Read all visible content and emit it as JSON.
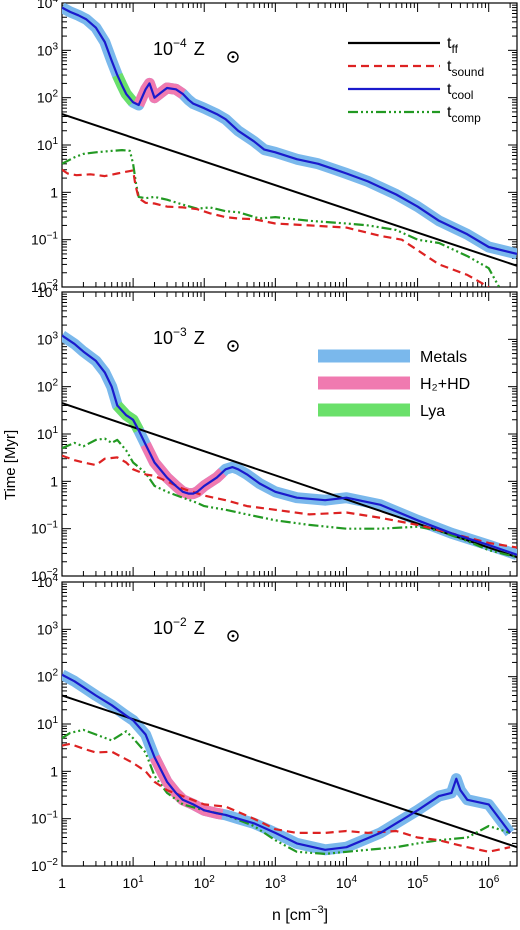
{
  "figure": {
    "ylabel": "Time [Myr]",
    "xlabel_base": "n [cm",
    "xlabel_exp": "−3",
    "xlabel_end": "]",
    "x_tick_labels": [
      {
        "base": "1",
        "exp": ""
      },
      {
        "base": "10",
        "exp": "1"
      },
      {
        "base": "10",
        "exp": "2"
      },
      {
        "base": "10",
        "exp": "3"
      },
      {
        "base": "10",
        "exp": "4"
      },
      {
        "base": "10",
        "exp": "5"
      },
      {
        "base": "10",
        "exp": "6"
      }
    ],
    "y_tick_labels": [
      {
        "base": "10",
        "exp": "−2"
      },
      {
        "base": "10",
        "exp": "−1"
      },
      {
        "base": "1",
        "exp": ""
      },
      {
        "base": "10",
        "exp": "1"
      },
      {
        "base": "10",
        "exp": "2"
      },
      {
        "base": "10",
        "exp": "3"
      },
      {
        "base": "10",
        "exp": "4"
      }
    ],
    "legend_lines": [
      {
        "base": "t",
        "sub": "ff",
        "color": "#000000",
        "dash": ""
      },
      {
        "base": "t",
        "sub": "sound",
        "color": "#dd2222",
        "dash": "8,5"
      },
      {
        "base": "t",
        "sub": "cool",
        "color": "#1a1acc",
        "dash": ""
      },
      {
        "base": "t",
        "sub": "comp",
        "color": "#229922",
        "dash": "10,3,2,3,2,3,2,3"
      }
    ],
    "legend_bands": [
      {
        "label": "Metals",
        "color": "#7ab8ec"
      },
      {
        "label": "H₂+HD",
        "color": "#f07ab0"
      },
      {
        "label": "Lya",
        "color": "#6ae06a"
      }
    ],
    "colors": {
      "metals": "#7ab8ec",
      "h2hd": "#f07ab0",
      "lya": "#6ae06a",
      "tcool": "#1a1acc",
      "tff": "#000000",
      "tsound": "#dd2222",
      "tcomp": "#229922"
    }
  },
  "chart_data": [
    {
      "type": "line",
      "panel_label_base": "10",
      "panel_label_exp": "−4",
      "panel_label_unit": "Z",
      "xscale": "log",
      "yscale": "log",
      "xlim": [
        1,
        2500000
      ],
      "ylim": [
        0.01,
        10000
      ],
      "legend": "top-right",
      "series": [
        {
          "key": "tff",
          "x": [
            1,
            2500000
          ],
          "y": [
            45,
            0.028
          ]
        },
        {
          "key": "tsound",
          "x": [
            1,
            1.2,
            1.6,
            2.5,
            4,
            6,
            10,
            10.8,
            12,
            15,
            20,
            30,
            50,
            80,
            120,
            200,
            300,
            500,
            1000,
            3000,
            10000,
            30000,
            60000,
            100000,
            200000,
            500000,
            1000000
          ],
          "y": [
            3.0,
            2.5,
            2.3,
            2.4,
            2.2,
            2.5,
            2.9,
            1.4,
            0.75,
            0.6,
            0.58,
            0.5,
            0.48,
            0.44,
            0.36,
            0.3,
            0.28,
            0.27,
            0.22,
            0.2,
            0.18,
            0.12,
            0.1,
            0.06,
            0.03,
            0.018,
            0.01
          ]
        },
        {
          "key": "tcomp",
          "x": [
            1,
            1.5,
            2,
            3,
            5,
            7,
            9,
            10,
            11,
            12,
            15,
            20,
            30,
            50,
            80,
            120,
            200,
            300,
            600,
            1000,
            3000,
            10000,
            20000,
            50000,
            100000,
            200000,
            500000,
            1000000,
            1400000
          ],
          "y": [
            4.0,
            5.5,
            6.5,
            7.0,
            7.5,
            7.8,
            7.5,
            4.0,
            1.5,
            0.8,
            0.75,
            0.8,
            0.7,
            0.55,
            0.45,
            0.48,
            0.4,
            0.38,
            0.28,
            0.3,
            0.25,
            0.22,
            0.2,
            0.16,
            0.1,
            0.085,
            0.045,
            0.025,
            0.01
          ]
        },
        {
          "key": "tcool",
          "x": [
            1,
            1.3,
            1.7,
            2.2,
            3,
            4,
            5,
            6,
            7,
            8,
            10,
            12,
            15,
            17,
            20,
            25,
            30,
            40,
            50,
            60,
            70,
            100,
            150,
            200,
            300,
            400,
            500,
            700,
            1000,
            2000,
            4000,
            7000,
            10000,
            20000,
            50000,
            100000,
            200000,
            500000,
            1000000,
            2500000
          ],
          "y": [
            8000,
            6500,
            5500,
            4500,
            3000,
            1500,
            600,
            300,
            180,
            120,
            80,
            70,
            150,
            200,
            100,
            130,
            160,
            150,
            120,
            90,
            75,
            60,
            45,
            35,
            20,
            15,
            12,
            8,
            7,
            5,
            4,
            3,
            2.5,
            1.7,
            0.9,
            0.5,
            0.25,
            0.13,
            0.07,
            0.05
          ]
        }
      ],
      "highlights": [
        {
          "key": "metals",
          "x_from": 1,
          "x_to": 2500000
        },
        {
          "key": "lya",
          "x_from": 6,
          "x_to": 10
        },
        {
          "key": "h2hd",
          "x_from": 12,
          "x_to": 50
        }
      ]
    },
    {
      "type": "line",
      "panel_label_base": "10",
      "panel_label_exp": "−3",
      "panel_label_unit": "Z",
      "xscale": "log",
      "yscale": "log",
      "xlim": [
        1,
        2500000
      ],
      "ylim": [
        0.01,
        10000
      ],
      "legend": "top-right",
      "series": [
        {
          "key": "tff",
          "x": [
            1,
            2500000
          ],
          "y": [
            45,
            0.025
          ]
        },
        {
          "key": "tsound",
          "x": [
            1,
            1.5,
            2,
            3,
            4,
            6,
            8,
            10,
            15,
            20,
            30,
            50,
            100,
            200,
            400,
            1000,
            3000,
            10000,
            30000,
            100000,
            300000,
            1000000,
            2500000
          ],
          "y": [
            3.5,
            2.8,
            2.5,
            2.2,
            3.0,
            3.2,
            2.5,
            1.8,
            1.4,
            1.3,
            1.0,
            0.7,
            0.5,
            0.4,
            0.3,
            0.25,
            0.2,
            0.22,
            0.17,
            0.12,
            0.08,
            0.05,
            0.04
          ]
        },
        {
          "key": "tcomp",
          "x": [
            1,
            1.5,
            2,
            3,
            4,
            5,
            6,
            8,
            10,
            15,
            20,
            30,
            50,
            80,
            100,
            200,
            400,
            1000,
            3000,
            10000,
            30000,
            100000,
            200000,
            500000,
            1000000,
            2500000
          ],
          "y": [
            5.0,
            6.5,
            5.5,
            7.5,
            8.0,
            6.5,
            7.5,
            4.5,
            2.5,
            1.5,
            0.8,
            0.6,
            0.45,
            0.35,
            0.3,
            0.25,
            0.2,
            0.15,
            0.12,
            0.1,
            0.1,
            0.11,
            0.09,
            0.055,
            0.035,
            0.025
          ]
        },
        {
          "key": "tcool",
          "x": [
            1,
            1.5,
            2,
            3,
            4,
            5,
            6,
            8,
            10,
            12,
            15,
            20,
            30,
            40,
            50,
            60,
            70,
            80,
            100,
            150,
            200,
            250,
            300,
            400,
            600,
            1000,
            2000,
            5000,
            10000,
            30000,
            100000,
            300000,
            1000000,
            2500000
          ],
          "y": [
            1200,
            800,
            550,
            350,
            200,
            100,
            40,
            25,
            20,
            12,
            6,
            2.5,
            1.2,
            0.8,
            0.6,
            0.55,
            0.55,
            0.6,
            0.8,
            1.2,
            1.8,
            2.0,
            1.8,
            1.4,
            0.9,
            0.6,
            0.45,
            0.4,
            0.45,
            0.32,
            0.15,
            0.08,
            0.045,
            0.028
          ]
        }
      ],
      "highlights": [
        {
          "key": "metals",
          "x_from": 1,
          "x_to": 2500000
        },
        {
          "key": "lya",
          "x_from": 6,
          "x_to": 12
        },
        {
          "key": "h2hd",
          "x_from": 15,
          "x_to": 180
        }
      ]
    },
    {
      "type": "line",
      "panel_label_base": "10",
      "panel_label_exp": "−2",
      "panel_label_unit": "Z",
      "xscale": "log",
      "yscale": "log",
      "xlim": [
        1,
        2500000
      ],
      "ylim": [
        0.01,
        10000
      ],
      "legend": "none",
      "series": [
        {
          "key": "tff",
          "x": [
            1,
            2500000
          ],
          "y": [
            40,
            0.025
          ]
        },
        {
          "key": "tsound",
          "x": [
            1,
            1.3,
            2,
            3,
            5,
            8,
            10,
            15,
            20,
            30,
            50,
            100,
            200,
            500,
            1000,
            2000,
            5000,
            10000,
            20000,
            50000,
            100000,
            200000,
            500000,
            1000000,
            2000000
          ],
          "y": [
            3.5,
            3.8,
            3.0,
            2.5,
            2.6,
            1.8,
            1.5,
            1.0,
            0.6,
            0.4,
            0.3,
            0.2,
            0.18,
            0.1,
            0.06,
            0.05,
            0.05,
            0.055,
            0.05,
            0.055,
            0.04,
            0.035,
            0.025,
            0.02,
            0.025
          ]
        },
        {
          "key": "tcomp",
          "x": [
            1,
            1.3,
            2,
            3,
            5,
            8,
            10,
            15,
            20,
            30,
            50,
            100,
            200,
            500,
            1000,
            2000,
            5000,
            10000,
            20000,
            50000,
            100000,
            200000,
            500000,
            1000000,
            2000000
          ],
          "y": [
            5.0,
            6.5,
            7.5,
            6.0,
            4.5,
            7.0,
            5.0,
            2.5,
            0.8,
            0.35,
            0.2,
            0.15,
            0.12,
            0.07,
            0.035,
            0.02,
            0.018,
            0.02,
            0.022,
            0.025,
            0.03,
            0.035,
            0.04,
            0.07,
            0.05
          ]
        },
        {
          "key": "tcool",
          "x": [
            1,
            1.5,
            2,
            3,
            5,
            8,
            10,
            15,
            20,
            30,
            40,
            50,
            70,
            100,
            150,
            200,
            300,
            500,
            1000,
            2000,
            5000,
            10000,
            30000,
            100000,
            200000,
            300000,
            350000,
            400000,
            500000,
            1000000,
            2000000
          ],
          "y": [
            110,
            80,
            60,
            40,
            25,
            15,
            12,
            6,
            2,
            0.6,
            0.35,
            0.25,
            0.2,
            0.15,
            0.13,
            0.12,
            0.1,
            0.08,
            0.05,
            0.03,
            0.022,
            0.025,
            0.05,
            0.15,
            0.3,
            0.35,
            0.7,
            0.4,
            0.25,
            0.2,
            0.05
          ]
        }
      ],
      "highlights": [
        {
          "key": "metals",
          "x_from": 1,
          "x_to": 2000000
        },
        {
          "key": "h2hd",
          "x_from": 20,
          "x_to": 180
        }
      ]
    }
  ]
}
